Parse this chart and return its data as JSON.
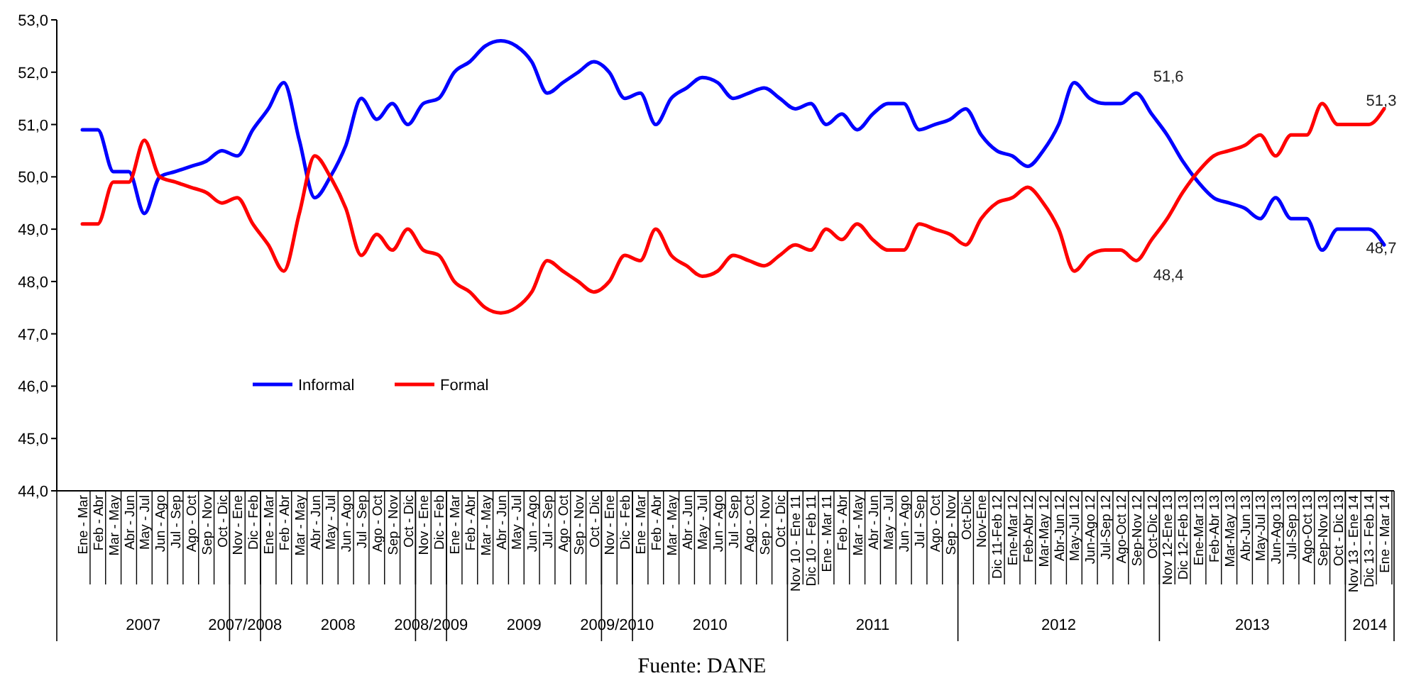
{
  "chart_data": {
    "type": "line",
    "categories": [
      "Ene - Mar",
      "Feb - Abr",
      "Mar - May",
      "Abr - Jun",
      "May - Jul",
      "Jun - Ago",
      "Jul - Sep",
      "Ago - Oct",
      "Sep - Nov",
      "Oct - Dic",
      "Nov - Ene",
      "Dic - Feb",
      "Ene - Mar",
      "Feb - Abr",
      "Mar - May",
      "Abr - Jun",
      "May - Jul",
      "Jun - Ago",
      "Jul - Sep",
      "Ago - Oct",
      "Sep - Nov",
      "Oct - Dic",
      "Nov - Ene",
      "Dic - Feb",
      "Ene - Mar",
      "Feb - Abr",
      "Mar - May",
      "Abr - Jun",
      "May - Jul",
      "Jun - Ago",
      "Jul - Sep",
      "Ago - Oct",
      "Sep - Nov",
      "Oct - Dic",
      "Nov - Ene",
      "Dic - Feb",
      "Ene - Mar",
      "Feb - Abr",
      "Mar - May",
      "Abr - Jun",
      "May - Jul",
      "Jun - Ago",
      "Jul - Sep",
      "Ago - Oct",
      "Sep - Nov",
      "Oct - Dic",
      "Nov 10 - Ene 11",
      "Dic 10 - Feb 11",
      "Ene - Mar 11",
      "Feb - Abr",
      "Mar - May",
      "Abr - Jun",
      "May - Jul",
      "Jun - Ago",
      "Jul - Sep",
      "Ago - Oct",
      "Sep - Nov",
      "Oct-Dic",
      "Nov-Ene",
      "Dic 11-Feb 12",
      "Ene-Mar 12",
      "Feb-Abr 12",
      "Mar-May 12",
      "Abr-Jun 12",
      "May-Jul 12",
      "Jun-Ago 12",
      "Jul-Sep 12",
      "Ago-Oct 12",
      "Sep-Nov 12",
      "Oct-Dic 12",
      "Nov 12-Ene 13",
      "Dic 12-Feb 13",
      "Ene-Mar 13",
      "Feb-Abr 13",
      "Mar-May 13",
      "Abr-Jun 13",
      "May-Jul 13",
      "Jun-Ago 13",
      "Jul-Sep 13",
      "Ago-Oct 13",
      "Sep-Nov 13",
      "Oct - Dic 13",
      "Nov 13 - Ene 14",
      "Dic 13 - Feb 14",
      "Ene - Mar 14"
    ],
    "series": [
      {
        "name": "Informal",
        "color": "#0000ff",
        "values": [
          50.9,
          50.9,
          50.1,
          50.1,
          49.3,
          50.0,
          50.1,
          50.2,
          50.3,
          50.5,
          50.4,
          50.9,
          51.3,
          51.8,
          50.7,
          49.6,
          50.0,
          50.6,
          51.5,
          51.1,
          51.4,
          51.0,
          51.4,
          51.5,
          52.0,
          52.2,
          52.5,
          52.6,
          52.5,
          52.2,
          51.6,
          51.8,
          52.0,
          52.2,
          52.0,
          51.5,
          51.6,
          51.0,
          51.5,
          51.7,
          51.9,
          51.8,
          51.5,
          51.6,
          51.7,
          51.5,
          51.3,
          51.4,
          51.0,
          51.2,
          50.9,
          51.2,
          51.4,
          51.4,
          50.9,
          51.0,
          51.1,
          51.3,
          50.8,
          50.5,
          50.4,
          50.2,
          50.5,
          51.0,
          51.8,
          51.5,
          51.4,
          51.4,
          51.6,
          51.2,
          50.8,
          50.3,
          49.9,
          49.6,
          49.5,
          49.4,
          49.2,
          49.6,
          49.2,
          49.2,
          48.6,
          49.0,
          49.0,
          49.0,
          48.7
        ],
        "value_labels": [
          null,
          null,
          null,
          null,
          null,
          null,
          null,
          null,
          null,
          null,
          null,
          null,
          null,
          null,
          null,
          null,
          null,
          null,
          null,
          null,
          null,
          null,
          null,
          null,
          null,
          null,
          null,
          null,
          null,
          null,
          null,
          null,
          null,
          null,
          null,
          null,
          null,
          null,
          null,
          null,
          null,
          null,
          null,
          null,
          null,
          null,
          null,
          null,
          null,
          null,
          null,
          null,
          null,
          null,
          null,
          null,
          null,
          null,
          null,
          null,
          null,
          null,
          null,
          null,
          null,
          null,
          null,
          null,
          "51,6",
          null,
          null,
          null,
          null,
          null,
          null,
          null,
          null,
          null,
          null,
          null,
          null,
          null,
          null,
          null,
          "48,7"
        ]
      },
      {
        "name": "Formal",
        "color": "#ff0000",
        "values": [
          49.1,
          49.1,
          49.9,
          49.9,
          50.7,
          50.0,
          49.9,
          49.8,
          49.7,
          49.5,
          49.6,
          49.1,
          48.7,
          48.2,
          49.3,
          50.4,
          50.0,
          49.4,
          48.5,
          48.9,
          48.6,
          49.0,
          48.6,
          48.5,
          48.0,
          47.8,
          47.5,
          47.4,
          47.5,
          47.8,
          48.4,
          48.2,
          48.0,
          47.8,
          48.0,
          48.5,
          48.4,
          49.0,
          48.5,
          48.3,
          48.1,
          48.2,
          48.5,
          48.4,
          48.3,
          48.5,
          48.7,
          48.6,
          49.0,
          48.8,
          49.1,
          48.8,
          48.6,
          48.6,
          49.1,
          49.0,
          48.9,
          48.7,
          49.2,
          49.5,
          49.6,
          49.8,
          49.5,
          49.0,
          48.2,
          48.5,
          48.6,
          48.6,
          48.4,
          48.8,
          49.2,
          49.7,
          50.1,
          50.4,
          50.5,
          50.6,
          50.8,
          50.4,
          50.8,
          50.8,
          51.4,
          51.0,
          51.0,
          51.0,
          51.3
        ],
        "value_labels": [
          null,
          null,
          null,
          null,
          null,
          null,
          null,
          null,
          null,
          null,
          null,
          null,
          null,
          null,
          null,
          null,
          null,
          null,
          null,
          null,
          null,
          null,
          null,
          null,
          null,
          null,
          null,
          null,
          null,
          null,
          null,
          null,
          null,
          null,
          null,
          null,
          null,
          null,
          null,
          null,
          null,
          null,
          null,
          null,
          null,
          null,
          null,
          null,
          null,
          null,
          null,
          null,
          null,
          null,
          null,
          null,
          null,
          null,
          null,
          null,
          null,
          null,
          null,
          null,
          null,
          null,
          null,
          null,
          "48,4",
          null,
          null,
          null,
          null,
          null,
          null,
          null,
          null,
          null,
          null,
          null,
          null,
          null,
          null,
          null,
          "51,3"
        ]
      }
    ],
    "ylim": [
      44,
      53
    ],
    "yticks": [
      {
        "value": 44,
        "label": "44,0"
      },
      {
        "value": 45,
        "label": "45,0"
      },
      {
        "value": 46,
        "label": "46,0"
      },
      {
        "value": 47,
        "label": "47,0"
      },
      {
        "value": 48,
        "label": "48,0"
      },
      {
        "value": 49,
        "label": "49,0"
      },
      {
        "value": 50,
        "label": "50,0"
      },
      {
        "value": 51,
        "label": "51,0"
      },
      {
        "value": 52,
        "label": "52,0"
      },
      {
        "value": 53,
        "label": "53,0"
      }
    ],
    "grid": false,
    "legend": "bottom left",
    "marker": "none",
    "line_style": "solid",
    "annotations": [
      "2007",
      "2007/2008",
      "2008",
      "2008/2009",
      "2009",
      "2009/2010",
      "2010",
      "2011",
      "2012",
      "2013",
      "2014",
      "Fuente: DANE"
    ]
  }
}
